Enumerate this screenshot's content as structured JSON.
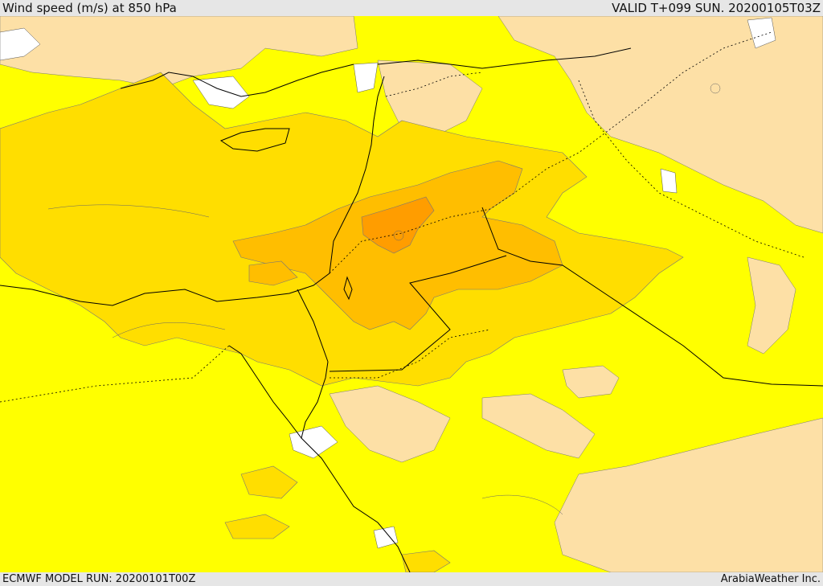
{
  "header": {
    "title": "Wind speed (m/s) at 850 hPa",
    "valid_time": "VALID T+099 SUN. 20200105T03Z"
  },
  "footer": {
    "model_run": "ECMWF MODEL RUN: 20200101T00Z",
    "credit": "ArabiaWeather Inc."
  },
  "legend_colors": {
    "calm_white": "#ffffff",
    "light_wheat": "#fde0a6",
    "yellow": "#ffff00",
    "gold": "#ffde00",
    "amber": "#ffbe00",
    "orange": "#ff9d00"
  },
  "line_colors": {
    "coast": "#000000",
    "border": "#000000",
    "contour": "#555555"
  }
}
